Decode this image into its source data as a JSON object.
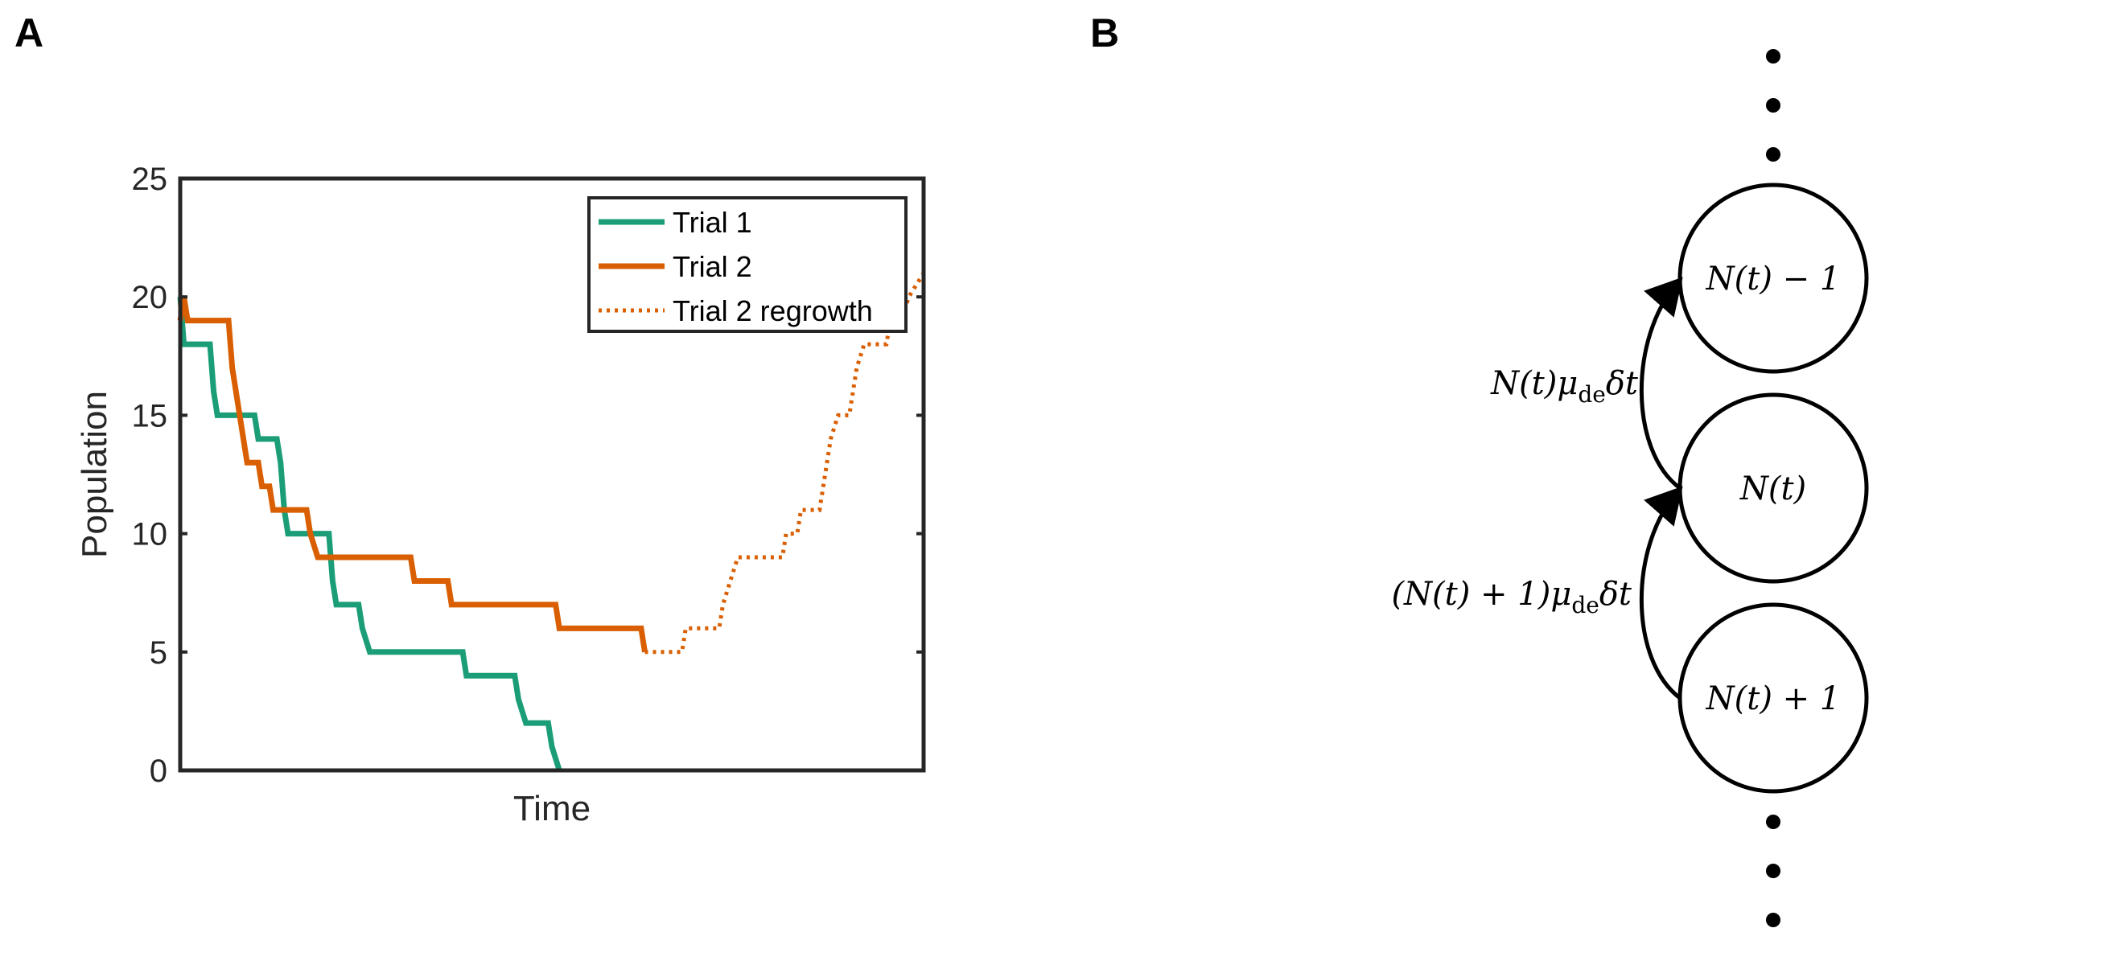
{
  "panel_labels": {
    "a": "A",
    "b": "B"
  },
  "colors": {
    "trial1": "#1b9e77",
    "trial2": "#d95f02",
    "axis": "#262626"
  },
  "chart_data": {
    "type": "line",
    "title": "",
    "xlabel": "Time",
    "ylabel": "Population",
    "xlim": [
      0,
      100
    ],
    "ylim": [
      0,
      25
    ],
    "yticks": [
      0,
      5,
      10,
      15,
      20,
      25
    ],
    "grid": false,
    "legend_position": "top-right",
    "series": [
      {
        "name": "Trial 1",
        "style": "solid",
        "color": "#1b9e77",
        "points": [
          [
            0,
            20
          ],
          [
            0.5,
            18
          ],
          [
            4,
            18
          ],
          [
            4.5,
            16
          ],
          [
            5,
            15
          ],
          [
            10,
            15
          ],
          [
            10.5,
            14
          ],
          [
            13,
            14
          ],
          [
            13.5,
            13
          ],
          [
            14,
            11
          ],
          [
            14.5,
            10
          ],
          [
            20,
            10
          ],
          [
            20.5,
            8
          ],
          [
            21,
            7
          ],
          [
            24,
            7
          ],
          [
            24.5,
            6
          ],
          [
            25.5,
            5
          ],
          [
            38,
            5
          ],
          [
            38.5,
            4
          ],
          [
            45,
            4
          ],
          [
            45.5,
            3
          ],
          [
            46.5,
            2
          ],
          [
            49.5,
            2
          ],
          [
            50,
            1
          ],
          [
            51,
            0
          ]
        ]
      },
      {
        "name": "Trial 2",
        "style": "solid",
        "color": "#d95f02",
        "points": [
          [
            0,
            19
          ],
          [
            0.5,
            20
          ],
          [
            1,
            19
          ],
          [
            6.5,
            19
          ],
          [
            7,
            17
          ],
          [
            7.5,
            16
          ],
          [
            8,
            15
          ],
          [
            8.5,
            14
          ],
          [
            9,
            13
          ],
          [
            10.5,
            13
          ],
          [
            11,
            12
          ],
          [
            12,
            12
          ],
          [
            12.5,
            11
          ],
          [
            17,
            11
          ],
          [
            17.5,
            10
          ],
          [
            18.5,
            9
          ],
          [
            31,
            9
          ],
          [
            31.5,
            8
          ],
          [
            36,
            8
          ],
          [
            36.5,
            7
          ],
          [
            50.5,
            7
          ],
          [
            51,
            6
          ],
          [
            62,
            6
          ],
          [
            62.5,
            5
          ]
        ]
      },
      {
        "name": "Trial 2 regrowth",
        "style": "dotted",
        "color": "#d95f02",
        "points": [
          [
            62.5,
            5
          ],
          [
            67.5,
            5
          ],
          [
            68,
            6
          ],
          [
            72.5,
            6
          ],
          [
            73,
            7
          ],
          [
            74,
            8
          ],
          [
            75,
            9
          ],
          [
            81,
            9
          ],
          [
            81.5,
            10
          ],
          [
            83,
            10
          ],
          [
            83.5,
            11
          ],
          [
            86,
            11
          ],
          [
            86.5,
            12
          ],
          [
            87.5,
            14
          ],
          [
            88.5,
            15
          ],
          [
            90,
            15
          ],
          [
            90.5,
            16
          ],
          [
            91,
            17
          ],
          [
            92,
            18
          ],
          [
            95,
            18
          ],
          [
            95.5,
            19
          ],
          [
            97,
            19
          ],
          [
            98,
            20
          ],
          [
            100,
            21
          ]
        ]
      }
    ]
  },
  "diagram": {
    "states": [
      "N(t) − 1",
      "N(t)",
      "N(t) + 1"
    ],
    "transition_upper": {
      "main": "N(t)μ",
      "sub": "de",
      "tail": "δt"
    },
    "transition_lower": {
      "main": "(N(t) + 1)μ",
      "sub": "de",
      "tail": "δt"
    }
  }
}
